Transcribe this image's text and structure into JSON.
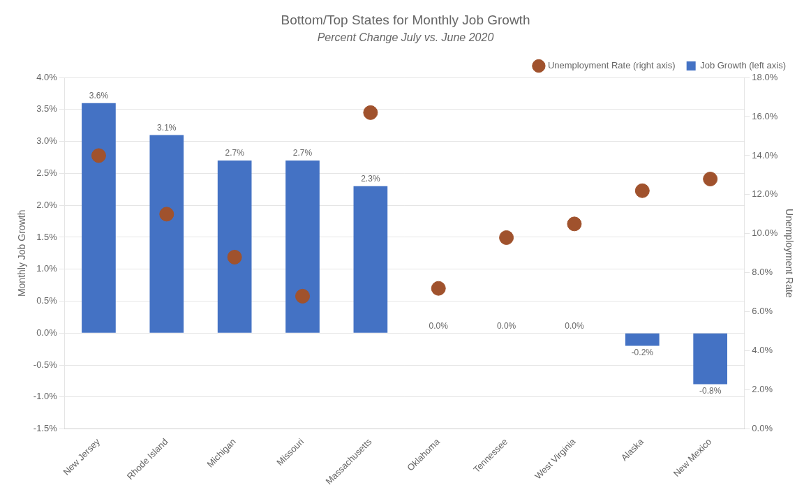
{
  "chart_data": {
    "type": "bar",
    "title": "Bottom/Top States for Monthly Job Growth",
    "subtitle": "Percent Change July vs. June 2020",
    "categories": [
      "New Jersey",
      "Rhode Island",
      "Michigan",
      "Missouri",
      "Massachusetts",
      "Oklahoma",
      "Tennessee",
      "West Virginia",
      "Alaska",
      "New Mexico"
    ],
    "ylabel": "Monthly Job Growth",
    "y2label": "Unemployment Rate",
    "series": [
      {
        "name": "Job Growth (left axis)",
        "type": "bar",
        "color": "#4472C4",
        "values": [
          3.6,
          3.1,
          2.7,
          2.7,
          2.3,
          0.0,
          0.0,
          0.0,
          -0.2,
          -0.8
        ],
        "data_labels": true,
        "value_labels": [
          "3.6%",
          "3.1%",
          "2.7%",
          "2.7%",
          "2.3%",
          "0.0%",
          "0.0%",
          "0.0%",
          "-0.2%",
          "-0.8%"
        ]
      },
      {
        "name": "Unemployment Rate (right axis)",
        "type": "scatter",
        "marker": "circle",
        "color": "#A0522D",
        "axis": "y2",
        "values": [
          14.0,
          11.0,
          8.8,
          6.8,
          16.2,
          7.2,
          9.8,
          10.5,
          12.2,
          12.8
        ]
      }
    ],
    "ylim": [
      -1.5,
      4.0
    ],
    "yticks": [
      {
        "value": -1.5,
        "label": "-1.5%"
      },
      {
        "value": -1.0,
        "label": "-1.0%"
      },
      {
        "value": -0.5,
        "label": "-0.5%"
      },
      {
        "value": 0.0,
        "label": "0.0%"
      },
      {
        "value": 0.5,
        "label": "0.5%"
      },
      {
        "value": 1.0,
        "label": "1.0%"
      },
      {
        "value": 1.5,
        "label": "1.5%"
      },
      {
        "value": 2.0,
        "label": "2.0%"
      },
      {
        "value": 2.5,
        "label": "2.5%"
      },
      {
        "value": 3.0,
        "label": "3.0%"
      },
      {
        "value": 3.5,
        "label": "3.5%"
      },
      {
        "value": 4.0,
        "label": "4.0%"
      }
    ],
    "y2lim": [
      0.0,
      18.0
    ],
    "y2ticks": [
      {
        "value": 0.0,
        "label": "0.0%"
      },
      {
        "value": 2.0,
        "label": "2.0%"
      },
      {
        "value": 4.0,
        "label": "4.0%"
      },
      {
        "value": 6.0,
        "label": "6.0%"
      },
      {
        "value": 8.0,
        "label": "8.0%"
      },
      {
        "value": 10.0,
        "label": "10.0%"
      },
      {
        "value": 12.0,
        "label": "12.0%"
      },
      {
        "value": 14.0,
        "label": "14.0%"
      },
      {
        "value": 16.0,
        "label": "16.0%"
      },
      {
        "value": 18.0,
        "label": "18.0%"
      }
    ],
    "grid": true,
    "legend": "upper right"
  }
}
